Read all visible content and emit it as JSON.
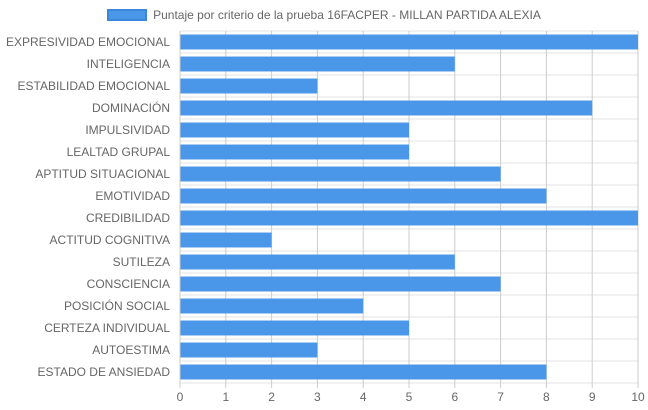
{
  "chart_data": {
    "type": "bar",
    "orientation": "horizontal",
    "categories": [
      "EXPRESIVIDAD EMOCIONAL",
      "INTELIGENCIA",
      "ESTABILIDAD EMOCIONAL",
      "DOMINACIÓN",
      "IMPULSIVIDAD",
      "LEALTAD GRUPAL",
      "APTITUD SITUACIONAL",
      "EMOTIVIDAD",
      "CREDIBILIDAD",
      "ACTITUD COGNITIVA",
      "SUTILEZA",
      "CONSCIENCIA",
      "POSICIÓN SOCIAL",
      "CERTEZA INDIVIDUAL",
      "AUTOESTIMA",
      "ESTADO DE ANSIEDAD"
    ],
    "series": [
      {
        "name": "Puntaje por criterio de la prueba 16FACPER - MILLAN PARTIDA ALEXIA",
        "values": [
          10,
          6,
          3,
          9,
          5,
          5,
          7,
          8,
          10,
          2,
          6,
          7,
          4,
          5,
          3,
          8
        ],
        "color": "#4A96E8"
      }
    ],
    "xlim": [
      0,
      10
    ],
    "xticks": [
      "0",
      "1",
      "2",
      "3",
      "4",
      "5",
      "6",
      "7",
      "8",
      "9",
      "10"
    ],
    "grid": true,
    "legend_position": "top-center",
    "title": "",
    "xlabel": "",
    "ylabel": ""
  }
}
